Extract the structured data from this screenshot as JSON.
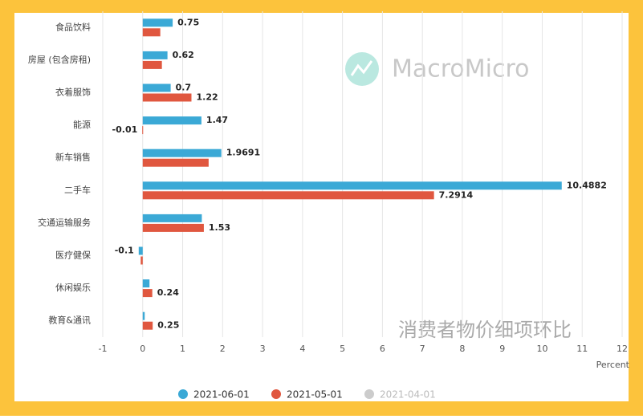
{
  "chart_data": {
    "type": "hbar",
    "title": "消费者物价细项环比",
    "watermark": "MacroMicro",
    "xlabel": "Percent",
    "categories": [
      "食品饮料",
      "房屋 (包含房租)",
      "衣着服饰",
      "能源",
      "新车销售",
      "二手车",
      "交通运输服务",
      "医疗健保",
      "休闲娱乐",
      "教育&通讯"
    ],
    "series": [
      {
        "name": "2021-06-01",
        "color": "#3ba9d6",
        "visible": true,
        "values": [
          0.75,
          0.62,
          0.7,
          1.47,
          1.9691,
          10.4882,
          1.48,
          -0.1,
          0.17,
          0.05
        ],
        "value_labels": [
          "0.75",
          "0.62",
          "0.7",
          "1.47",
          "1.9691",
          "10.4882",
          null,
          "-0.1",
          null,
          null
        ]
      },
      {
        "name": "2021-05-01",
        "color": "#e0573f",
        "visible": true,
        "values": [
          0.44,
          0.48,
          1.22,
          -0.01,
          1.65,
          7.2914,
          1.53,
          -0.05,
          0.24,
          0.25
        ],
        "value_labels": [
          null,
          null,
          "1.22",
          "-0.01",
          null,
          "7.2914",
          "1.53",
          null,
          "0.24",
          "0.25"
        ]
      },
      {
        "name": "2021-04-01",
        "color": "#cccccc",
        "visible": false,
        "values": [
          null,
          null,
          null,
          null,
          null,
          null,
          null,
          null,
          null,
          null
        ]
      }
    ],
    "xlim": [
      -1,
      12
    ],
    "xticks": [
      -1,
      0,
      1,
      2,
      3,
      4,
      5,
      6,
      7,
      8,
      9,
      10,
      11,
      12
    ],
    "grid": true
  }
}
